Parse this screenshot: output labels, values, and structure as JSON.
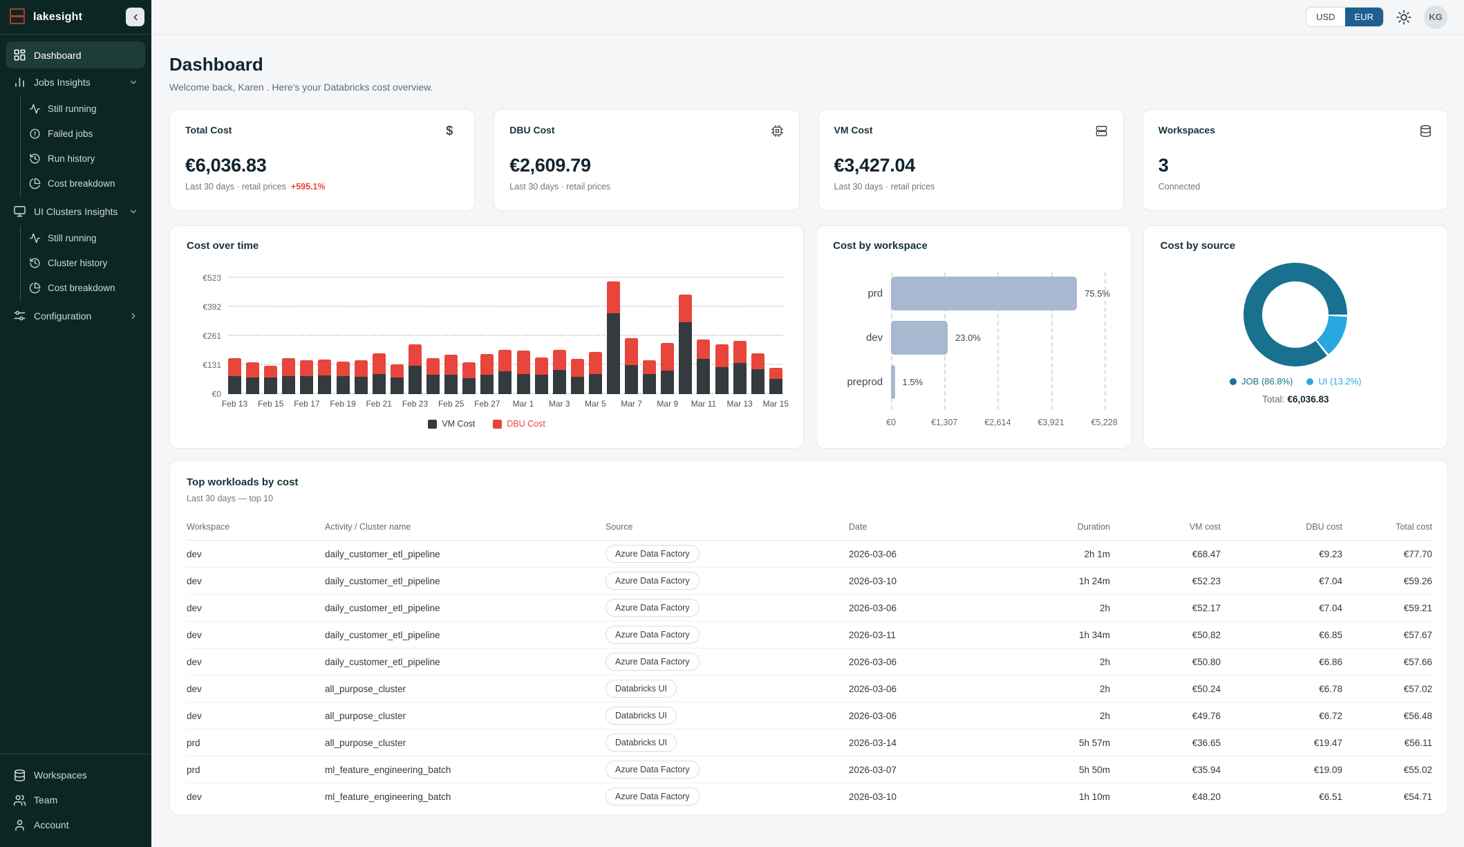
{
  "app": {
    "brand": "lakesight"
  },
  "topbar": {
    "currency_options": [
      "USD",
      "EUR"
    ],
    "currency_selected": "EUR",
    "avatar_initials": "KG"
  },
  "sidebar": {
    "items": [
      {
        "label": "Dashboard",
        "icon": "dashboard",
        "active": true
      },
      {
        "label": "Jobs Insights",
        "icon": "bar-chart",
        "chevron": "down",
        "children": [
          {
            "label": "Still running",
            "icon": "activity"
          },
          {
            "label": "Failed jobs",
            "icon": "alert-circle"
          },
          {
            "label": "Run history",
            "icon": "history"
          },
          {
            "label": "Cost breakdown",
            "icon": "pie-chart"
          }
        ]
      },
      {
        "label": "UI Clusters Insights",
        "icon": "monitor",
        "chevron": "down",
        "children": [
          {
            "label": "Still running",
            "icon": "activity"
          },
          {
            "label": "Cluster history",
            "icon": "history"
          },
          {
            "label": "Cost breakdown",
            "icon": "pie-chart"
          }
        ]
      },
      {
        "label": "Configuration",
        "icon": "sliders",
        "chevron": "right",
        "children": []
      }
    ],
    "bottom_items": [
      {
        "label": "Workspaces",
        "icon": "database"
      },
      {
        "label": "Team",
        "icon": "users"
      },
      {
        "label": "Account",
        "icon": "user"
      }
    ]
  },
  "page": {
    "title": "Dashboard",
    "subtitle": "Welcome back, Karen . Here's your Databricks cost overview."
  },
  "kpis": [
    {
      "label": "Total Cost",
      "icon": "dollar",
      "value": "€6,036.83",
      "caption": "Last 30 days · retail prices",
      "delta": "+595.1%"
    },
    {
      "label": "DBU Cost",
      "icon": "cpu",
      "value": "€2,609.79",
      "caption": "Last 30 days · retail prices",
      "delta": ""
    },
    {
      "label": "VM Cost",
      "icon": "server",
      "value": "€3,427.04",
      "caption": "Last 30 days · retail prices",
      "delta": ""
    },
    {
      "label": "Workspaces",
      "icon": "database",
      "value": "3",
      "caption": "Connected",
      "delta": ""
    }
  ],
  "colors": {
    "accent_red": "#e8453c",
    "vm_bar": "#333b3e",
    "workspace_bar": "#a8b8d0",
    "job_slice": "#17718f",
    "ui_slice": "#29a8e0",
    "eur_selected_bg": "#1d5f8f",
    "sidebar_bg": "#0c2623",
    "logo_red": "#b13a30"
  },
  "chart_data": [
    {
      "name": "cost_over_time",
      "type": "bar",
      "stacked": true,
      "title": "Cost over time",
      "grid": "dotted-horizontal",
      "legend_position": "bottom",
      "ylim": [
        0,
        523
      ],
      "yticks": [
        0,
        131,
        261,
        392,
        523
      ],
      "ytick_labels": [
        "€0",
        "€131",
        "€261",
        "€392",
        "€523"
      ],
      "categories": [
        "Feb 13",
        "Feb 14",
        "Feb 15",
        "Feb 16",
        "Feb 17",
        "Feb 18",
        "Feb 19",
        "Feb 20",
        "Feb 21",
        "Feb 22",
        "Feb 23",
        "Feb 24",
        "Feb 25",
        "Feb 26",
        "Feb 27",
        "Feb 28",
        "Mar 1",
        "Mar 2",
        "Mar 3",
        "Mar 4",
        "Mar 5",
        "Mar 6",
        "Mar 7",
        "Mar 8",
        "Mar 9",
        "Mar 10",
        "Mar 11",
        "Mar 12",
        "Mar 13",
        "Mar 14",
        "Mar 15"
      ],
      "x_tick_labels": [
        "Feb 13",
        "Feb 15",
        "Feb 17",
        "Feb 19",
        "Feb 21",
        "Feb 23",
        "Feb 25",
        "Feb 27",
        "Mar 1",
        "Mar 3",
        "Mar 5",
        "Mar 7",
        "Mar 9",
        "Mar 11",
        "Mar 13",
        "Mar 15"
      ],
      "series": [
        {
          "name": "VM Cost",
          "color": "#333b3e",
          "values": [
            82,
            76,
            74,
            80,
            82,
            85,
            82,
            79,
            90,
            75,
            128,
            88,
            87,
            71,
            88,
            104,
            89,
            88,
            108,
            79,
            89,
            363,
            130,
            89,
            105,
            323,
            159,
            120,
            140,
            112,
            68
          ]
        },
        {
          "name": "DBU Cost",
          "color": "#e8453c",
          "values": [
            80,
            70,
            53,
            80,
            73,
            72,
            66,
            74,
            93,
            58,
            97,
            74,
            89,
            73,
            94,
            98,
            107,
            78,
            89,
            80,
            99,
            144,
            122,
            62,
            124,
            125,
            86,
            103,
            100,
            72,
            49
          ]
        }
      ]
    },
    {
      "name": "cost_by_workspace",
      "type": "bar",
      "orientation": "horizontal",
      "title": "Cost by workspace",
      "categories": [
        "prd",
        "dev",
        "preprod"
      ],
      "values": [
        4558,
        1389,
        91
      ],
      "value_labels": [
        "75.5%",
        "23.0%",
        "1.5%"
      ],
      "xlim": [
        0,
        5228
      ],
      "xticks": [
        0,
        1307,
        2614,
        3921,
        5228
      ],
      "xtick_labels": [
        "€0",
        "€1,307",
        "€2,614",
        "€3,921",
        "€5,228"
      ],
      "bar_color": "#a8b8d0",
      "grid": "dashed-vertical"
    },
    {
      "name": "cost_by_source",
      "type": "pie",
      "title": "Cost by source",
      "slices": [
        {
          "label": "JOB",
          "pct": 86.8,
          "color": "#17718f",
          "legend": "JOB (86.8%)"
        },
        {
          "label": "UI",
          "pct": 13.2,
          "color": "#29a8e0",
          "legend": "UI (13.2%)"
        }
      ],
      "total_label": "Total:",
      "total_value": "€6,036.83",
      "legend_position": "bottom"
    }
  ],
  "table": {
    "title": "Top workloads by cost",
    "subtitle": "Last 30 days — top 10",
    "columns": [
      {
        "label": "Workspace",
        "align": "left"
      },
      {
        "label": "Activity / Cluster name",
        "align": "left"
      },
      {
        "label": "Source",
        "align": "left"
      },
      {
        "label": "Date",
        "align": "left"
      },
      {
        "label": "Duration",
        "align": "right"
      },
      {
        "label": "VM cost",
        "align": "right"
      },
      {
        "label": "DBU cost",
        "align": "right"
      },
      {
        "label": "Total cost",
        "align": "right"
      }
    ],
    "rows": [
      [
        "dev",
        "daily_customer_etl_pipeline",
        "Azure Data Factory",
        "2026-03-06",
        "2h 1m",
        "€68.47",
        "€9.23",
        "€77.70"
      ],
      [
        "dev",
        "daily_customer_etl_pipeline",
        "Azure Data Factory",
        "2026-03-10",
        "1h 24m",
        "€52.23",
        "€7.04",
        "€59.26"
      ],
      [
        "dev",
        "daily_customer_etl_pipeline",
        "Azure Data Factory",
        "2026-03-06",
        "2h",
        "€52.17",
        "€7.04",
        "€59.21"
      ],
      [
        "dev",
        "daily_customer_etl_pipeline",
        "Azure Data Factory",
        "2026-03-11",
        "1h 34m",
        "€50.82",
        "€6.85",
        "€57.67"
      ],
      [
        "dev",
        "daily_customer_etl_pipeline",
        "Azure Data Factory",
        "2026-03-06",
        "2h",
        "€50.80",
        "€6.86",
        "€57.66"
      ],
      [
        "dev",
        "all_purpose_cluster",
        "Databricks UI",
        "2026-03-06",
        "2h",
        "€50.24",
        "€6.78",
        "€57.02"
      ],
      [
        "dev",
        "all_purpose_cluster",
        "Databricks UI",
        "2026-03-06",
        "2h",
        "€49.76",
        "€6.72",
        "€56.48"
      ],
      [
        "prd",
        "all_purpose_cluster",
        "Databricks UI",
        "2026-03-14",
        "5h 57m",
        "€36.65",
        "€19.47",
        "€56.11"
      ],
      [
        "prd",
        "ml_feature_engineering_batch",
        "Azure Data Factory",
        "2026-03-07",
        "5h 50m",
        "€35.94",
        "€19.09",
        "€55.02"
      ],
      [
        "dev",
        "ml_feature_engineering_batch",
        "Azure Data Factory",
        "2026-03-10",
        "1h 10m",
        "€48.20",
        "€6.51",
        "€54.71"
      ]
    ]
  }
}
